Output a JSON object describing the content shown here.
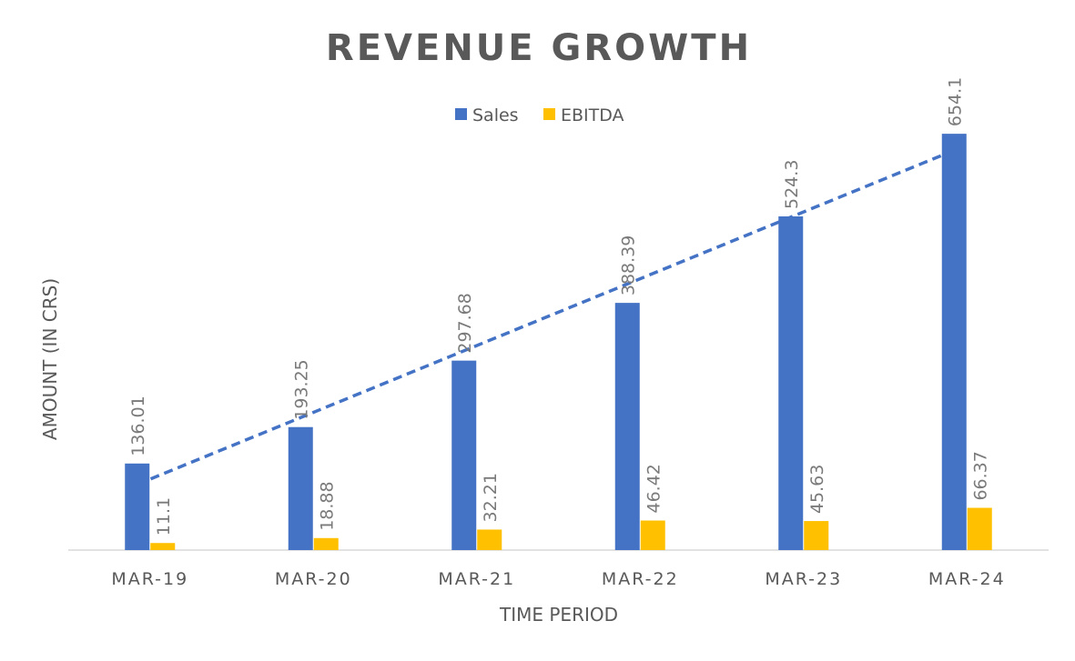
{
  "chart_data": {
    "type": "bar",
    "title": "REVENUE GROWTH",
    "xlabel": "TIME PERIOD",
    "ylabel": "AMOUNT (IN CRS)",
    "categories": [
      "MAR-19",
      "MAR-20",
      "MAR-21",
      "MAR-22",
      "MAR-23",
      "MAR-24"
    ],
    "series": [
      {
        "name": "Sales",
        "color": "#4472C4",
        "values": [
          136.01,
          193.25,
          297.68,
          388.39,
          524.3,
          654.1
        ],
        "labels": [
          "136.01",
          "193.25",
          "297.68",
          "388.39",
          "524.3",
          "654.1"
        ]
      },
      {
        "name": "EBITDA",
        "color": "#FFC000",
        "values": [
          11.1,
          18.88,
          32.21,
          46.42,
          45.63,
          66.37
        ],
        "labels": [
          "11.1",
          "18.88",
          "32.21",
          "46.42",
          "45.63",
          "66.37"
        ]
      }
    ],
    "trendline": {
      "series": "Sales",
      "type": "linear",
      "style": "dashed",
      "color": "#4472C4"
    },
    "ylim": [
      0,
      700
    ],
    "grid": false,
    "legend": "top"
  }
}
